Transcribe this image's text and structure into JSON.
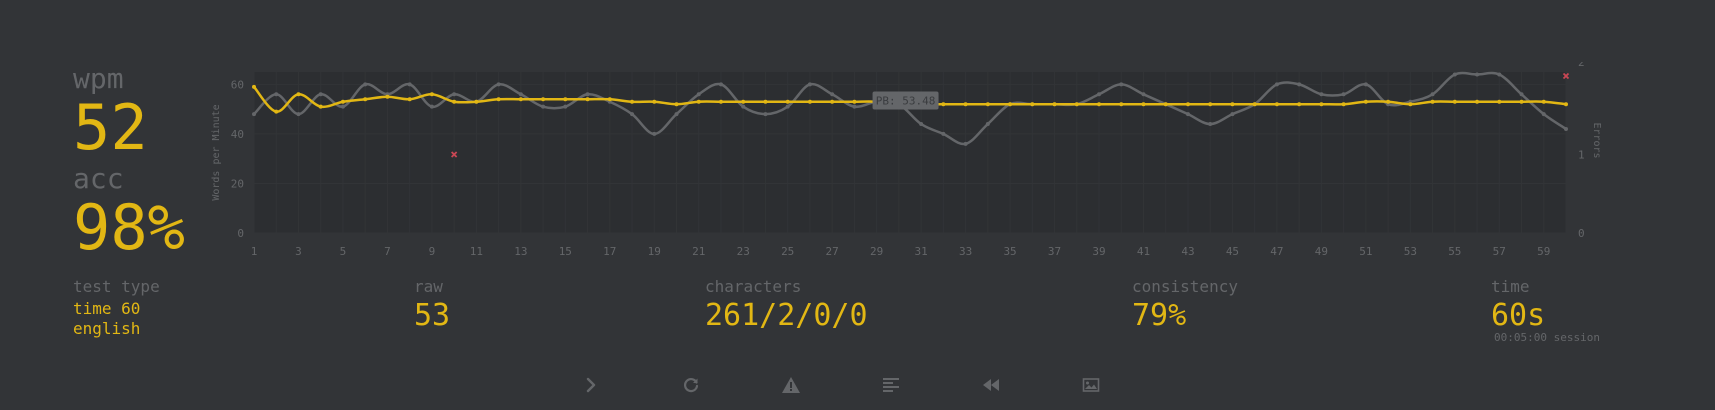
{
  "stats": {
    "wpm_label": "wpm",
    "wpm": "52",
    "acc_label": "acc",
    "acc": "98%"
  },
  "test_type": {
    "label": "test type",
    "line1": "time 60",
    "line2": "english"
  },
  "raw": {
    "label": "raw",
    "value": "53"
  },
  "characters": {
    "label": "characters",
    "value": "261/2/0/0"
  },
  "consistency": {
    "label": "consistency",
    "value": "79%"
  },
  "time": {
    "label": "time",
    "value": "60s",
    "session": "00:05:00 session"
  },
  "buttons": [
    {
      "name": "next-test-button",
      "icon": "chevron-right-icon"
    },
    {
      "name": "restart-button",
      "icon": "refresh-icon"
    },
    {
      "name": "report-button",
      "icon": "warning-icon"
    },
    {
      "name": "words-history-button",
      "icon": "align-left-icon"
    },
    {
      "name": "replay-button",
      "icon": "backward-icon"
    },
    {
      "name": "screenshot-button",
      "icon": "image-icon"
    }
  ],
  "colors": {
    "background": "#323437",
    "accent": "#e2b714",
    "sub": "#646669",
    "error": "#ca4754",
    "raw_line": "#646669"
  },
  "chart_data": {
    "type": "line",
    "ylabel": "Words per Minute",
    "y2label": "Errors",
    "ylim": [
      0,
      65
    ],
    "y2lim": [
      0,
      2
    ],
    "yticks": [
      "0",
      "20",
      "40",
      "60"
    ],
    "y2ticks": [
      "0",
      "1",
      "2"
    ],
    "x": [
      1,
      2,
      3,
      4,
      5,
      6,
      7,
      8,
      9,
      10,
      11,
      12,
      13,
      14,
      15,
      16,
      17,
      18,
      19,
      20,
      21,
      22,
      23,
      24,
      25,
      26,
      27,
      28,
      29,
      30,
      31,
      32,
      33,
      34,
      35,
      36,
      37,
      38,
      39,
      40,
      41,
      42,
      43,
      44,
      45,
      46,
      47,
      48,
      49,
      50,
      51,
      52,
      53,
      54,
      55,
      56,
      57,
      58,
      59,
      60
    ],
    "xticks": [
      "1",
      "3",
      "5",
      "7",
      "9",
      "11",
      "13",
      "15",
      "17",
      "19",
      "21",
      "23",
      "25",
      "27",
      "29",
      "31",
      "33",
      "35",
      "37",
      "39",
      "41",
      "43",
      "45",
      "47",
      "49",
      "51",
      "53",
      "55",
      "57",
      "59"
    ],
    "series": [
      {
        "name": "wpm",
        "values": [
          59,
          49,
          56,
          51,
          53,
          54,
          55,
          54,
          56,
          53,
          53,
          54,
          54,
          54,
          54,
          54,
          54,
          53,
          53,
          52,
          53,
          53,
          53,
          53,
          53,
          53,
          53,
          53,
          53,
          52,
          52,
          52,
          52,
          52,
          52,
          52,
          52,
          52,
          52,
          52,
          52,
          52,
          52,
          52,
          52,
          52,
          52,
          52,
          52,
          52,
          53,
          53,
          52,
          53,
          53,
          53,
          53,
          53,
          53,
          52
        ]
      },
      {
        "name": "raw",
        "values": [
          48,
          56,
          48,
          56,
          51,
          60,
          56,
          60,
          51,
          56,
          53,
          60,
          56,
          51,
          51,
          56,
          53,
          48,
          40,
          48,
          56,
          60,
          51,
          48,
          51,
          60,
          56,
          51,
          53,
          52,
          44,
          40,
          36,
          44,
          52,
          52,
          52,
          52,
          56,
          60,
          56,
          52,
          48,
          44,
          48,
          52,
          60,
          60,
          56,
          56,
          60,
          52,
          53,
          56,
          64,
          64,
          64,
          56,
          48,
          42
        ]
      }
    ],
    "errors": [
      {
        "x": 10,
        "count": 1
      },
      {
        "x": 60,
        "count": 2
      }
    ],
    "tooltip": "PB: 53.48",
    "pb": 53.48,
    "grid": true
  }
}
